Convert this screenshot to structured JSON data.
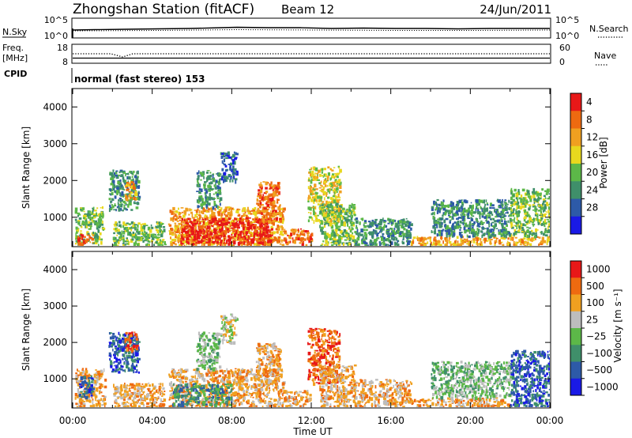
{
  "header": {
    "station": "Zhongshan Station (fitACF)",
    "beam": "Beam 12",
    "date": "24/Jun/2011"
  },
  "panels": {
    "nsky_label": "N.Sky",
    "nsky_ticks": [
      "10^5",
      "10^0"
    ],
    "nsearch_label": "N.Search",
    "nsearch_ticks": [
      "10^5",
      "10^0"
    ],
    "freq_label_1": "Freq.",
    "freq_label_2": "[MHz]",
    "freq_ticks": [
      "18",
      "8"
    ],
    "nave_label": "Nave",
    "nave_ticks": [
      "60",
      "0"
    ],
    "cpid_label": "CPID",
    "cpid_value": "normal (fast stereo) 153"
  },
  "chart_data": [
    {
      "type": "heatmap",
      "name": "power-panel",
      "xlabel": "",
      "ylabel": "Slant Range [km]",
      "yticks": [
        "1000",
        "2000",
        "3000",
        "4000"
      ],
      "ylim": [
        200,
        4500
      ],
      "xlim": [
        0,
        24
      ],
      "colorbar_label": "Power [dB]",
      "colorbar_ticks": [
        "4",
        "8",
        "12",
        "16",
        "20",
        "24",
        "28"
      ],
      "colorbar_colors": [
        "#1a1ae6",
        "#2d5aa8",
        "#3f8f6a",
        "#5cb848",
        "#e8d81e",
        "#f0a020",
        "#ee6a10",
        "#e81818"
      ],
      "patches": [
        {
          "t0": 0.1,
          "t1": 1.5,
          "r0": 250,
          "r1": 1300,
          "level": 3
        },
        {
          "t0": 0.2,
          "t1": 1.0,
          "r0": 250,
          "r1": 550,
          "level": 6
        },
        {
          "t0": 1.8,
          "t1": 3.3,
          "r0": 1200,
          "r1": 2300,
          "level": 2
        },
        {
          "t0": 2.6,
          "t1": 3.2,
          "r0": 1500,
          "r1": 2000,
          "level": 5
        },
        {
          "t0": 2.0,
          "t1": 4.6,
          "r0": 250,
          "r1": 900,
          "level": 3
        },
        {
          "t0": 4.8,
          "t1": 10.6,
          "r0": 250,
          "r1": 1300,
          "level": 5
        },
        {
          "t0": 5.4,
          "t1": 10.0,
          "r0": 300,
          "r1": 1000,
          "level": 7
        },
        {
          "t0": 6.2,
          "t1": 7.4,
          "r0": 1300,
          "r1": 2300,
          "level": 2
        },
        {
          "t0": 7.4,
          "t1": 8.2,
          "r0": 2000,
          "r1": 2800,
          "level": 1
        },
        {
          "t0": 9.2,
          "t1": 10.4,
          "r0": 900,
          "r1": 2000,
          "level": 6
        },
        {
          "t0": 10.6,
          "t1": 12.0,
          "r0": 250,
          "r1": 700,
          "level": 6
        },
        {
          "t0": 11.8,
          "t1": 13.4,
          "r0": 900,
          "r1": 2400,
          "level": 4
        },
        {
          "t0": 12.4,
          "t1": 14.2,
          "r0": 250,
          "r1": 1400,
          "level": 3
        },
        {
          "t0": 14.2,
          "t1": 17.0,
          "r0": 250,
          "r1": 1000,
          "level": 2
        },
        {
          "t0": 17.0,
          "t1": 24.0,
          "r0": 250,
          "r1": 500,
          "level": 5
        },
        {
          "t0": 18.0,
          "t1": 22.0,
          "r0": 500,
          "r1": 1500,
          "level": 2
        },
        {
          "t0": 22.0,
          "t1": 24.0,
          "r0": 500,
          "r1": 1800,
          "level": 3
        }
      ]
    },
    {
      "type": "heatmap",
      "name": "velocity-panel",
      "xlabel": "Time UT",
      "ylabel": "Slant Range [km]",
      "yticks": [
        "1000",
        "2000",
        "3000",
        "4000"
      ],
      "xticks": [
        "00:00",
        "04:00",
        "08:00",
        "12:00",
        "16:00",
        "20:00",
        "00:00"
      ],
      "ylim": [
        200,
        4500
      ],
      "xlim": [
        0,
        24
      ],
      "colorbar_label": "Velocity [m s⁻¹]",
      "colorbar_ticks": [
        "1000",
        "500",
        "100",
        "25",
        "−25",
        "−100",
        "−500",
        "−1000"
      ],
      "colorbar_colors": [
        "#1a1ae6",
        "#2d5aa8",
        "#3f8f6a",
        "#5cb848",
        "#bdbdbd",
        "#f0a020",
        "#ee6a10",
        "#e81818"
      ],
      "patches": [
        {
          "t0": 0.1,
          "t1": 1.6,
          "r0": 250,
          "r1": 1300,
          "level": 5
        },
        {
          "t0": 0.3,
          "t1": 1.0,
          "r0": 500,
          "r1": 1100,
          "level": 1
        },
        {
          "t0": 1.8,
          "t1": 3.3,
          "r0": 1200,
          "r1": 2300,
          "level": 1
        },
        {
          "t0": 2.6,
          "t1": 3.2,
          "r0": 1800,
          "r1": 2300,
          "level": 6
        },
        {
          "t0": 2.0,
          "t1": 4.6,
          "r0": 250,
          "r1": 900,
          "level": 5
        },
        {
          "t0": 4.8,
          "t1": 10.6,
          "r0": 250,
          "r1": 1300,
          "level": 5
        },
        {
          "t0": 5.0,
          "t1": 8.0,
          "r0": 300,
          "r1": 900,
          "level": 2
        },
        {
          "t0": 6.2,
          "t1": 7.4,
          "r0": 1300,
          "r1": 2300,
          "level": 3
        },
        {
          "t0": 7.4,
          "t1": 8.2,
          "r0": 2000,
          "r1": 2800,
          "level": 4
        },
        {
          "t0": 9.2,
          "t1": 10.4,
          "r0": 900,
          "r1": 2000,
          "level": 5
        },
        {
          "t0": 10.6,
          "t1": 12.0,
          "r0": 250,
          "r1": 700,
          "level": 5
        },
        {
          "t0": 11.8,
          "t1": 13.4,
          "r0": 900,
          "r1": 2400,
          "level": 6
        },
        {
          "t0": 12.4,
          "t1": 14.2,
          "r0": 250,
          "r1": 1400,
          "level": 5
        },
        {
          "t0": 14.2,
          "t1": 17.0,
          "r0": 250,
          "r1": 1000,
          "level": 5
        },
        {
          "t0": 17.0,
          "t1": 22.0,
          "r0": 250,
          "r1": 500,
          "level": 5
        },
        {
          "t0": 18.0,
          "t1": 22.0,
          "r0": 500,
          "r1": 1500,
          "level": 3
        },
        {
          "t0": 22.0,
          "t1": 24.0,
          "r0": 250,
          "r1": 1800,
          "level": 1
        }
      ]
    }
  ]
}
